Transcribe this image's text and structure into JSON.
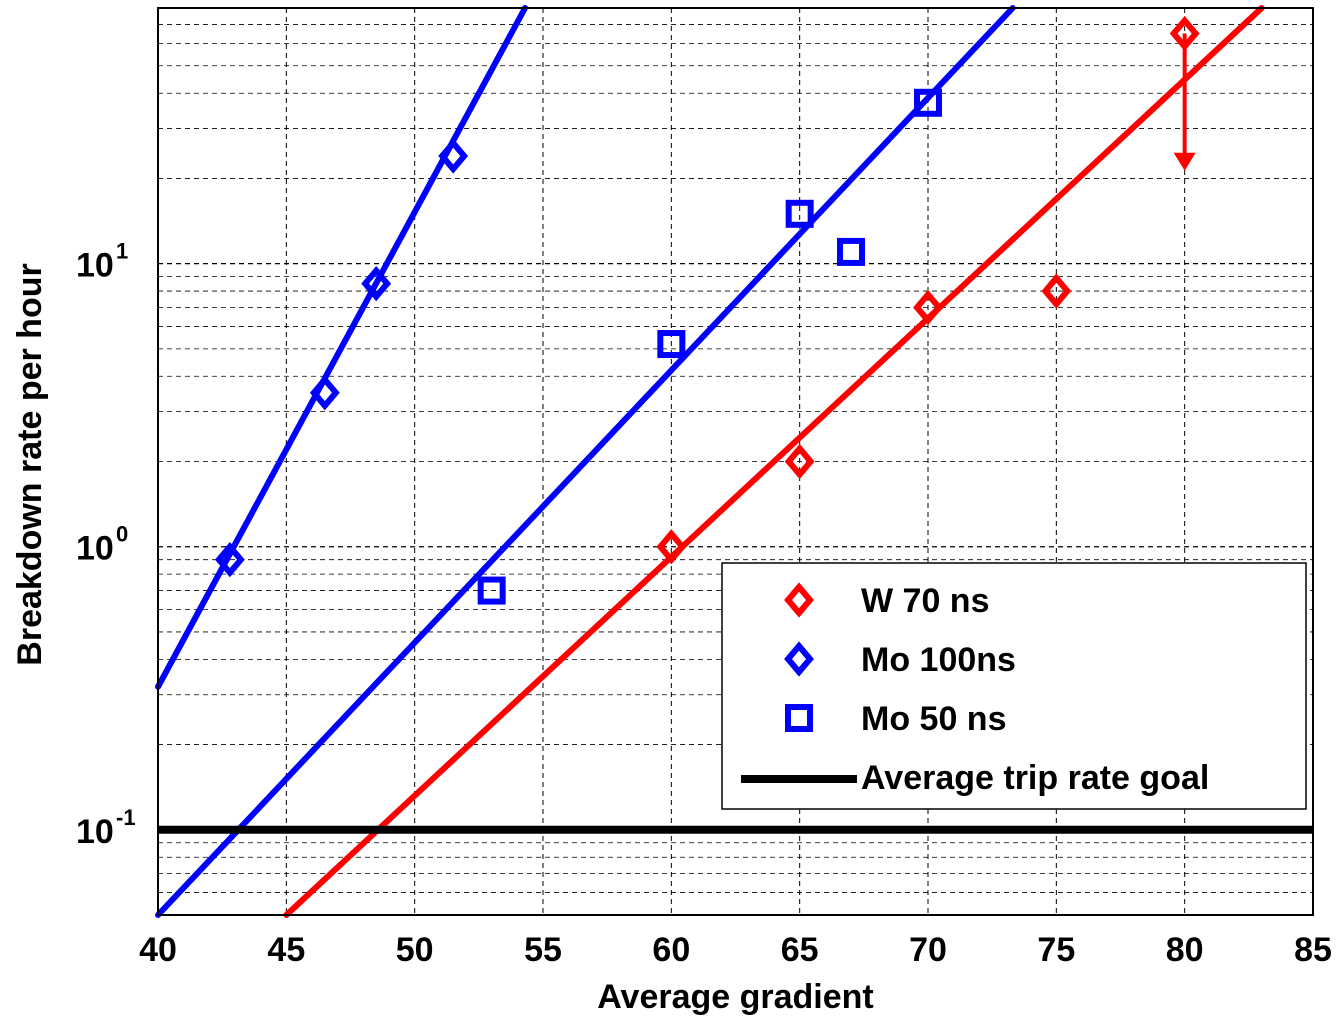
{
  "chart_data": {
    "type": "scatter",
    "xlabel": "Average gradient",
    "ylabel": "Breakdown rate per hour",
    "xlim": [
      40,
      85
    ],
    "ylim": [
      0.05,
      80
    ],
    "yscale": "log",
    "grid": true,
    "legend_position": "lower-right",
    "x_ticks": [
      40,
      45,
      50,
      55,
      60,
      65,
      70,
      75,
      80,
      85
    ],
    "y_ticks": [
      {
        "value": 0.1,
        "base": "10",
        "exp": "-1"
      },
      {
        "value": 1,
        "base": "10",
        "exp": "0"
      },
      {
        "value": 10,
        "base": "10",
        "exp": "1"
      }
    ],
    "series": [
      {
        "name": "W 70 ns",
        "marker": "diamond",
        "color": "#ff0000",
        "x": [
          60,
          65,
          70,
          75,
          80
        ],
        "y": [
          1.0,
          2.0,
          7.0,
          8.0,
          65.0
        ]
      },
      {
        "name": "Mo 100ns",
        "marker": "diamond",
        "color": "#0000ff",
        "x": [
          42.8,
          46.5,
          48.5,
          51.5
        ],
        "y": [
          0.9,
          3.5,
          8.5,
          24.0
        ]
      },
      {
        "name": "Mo 50 ns",
        "marker": "square",
        "color": "#0000ff",
        "x": [
          53,
          60,
          65,
          67,
          70
        ],
        "y": [
          0.7,
          5.2,
          15.0,
          11.0,
          37.0
        ]
      },
      {
        "name": "Average trip rate goal",
        "marker": "line",
        "color": "#000000",
        "x": [
          40,
          85
        ],
        "y": [
          0.1,
          0.1
        ]
      }
    ],
    "fit_lines": [
      {
        "color": "#ff0000",
        "x": [
          45,
          83
        ],
        "y": [
          0.05,
          80
        ]
      },
      {
        "color": "#0000ff",
        "x": [
          40,
          73.3
        ],
        "y": [
          0.05,
          80
        ]
      },
      {
        "color": "#0000ff",
        "x": [
          40,
          54.3
        ],
        "y": [
          0.32,
          80
        ]
      }
    ],
    "error_bars": [
      {
        "color": "#ff0000",
        "x": 80,
        "y": 65.0,
        "low": 22.0
      }
    ]
  }
}
